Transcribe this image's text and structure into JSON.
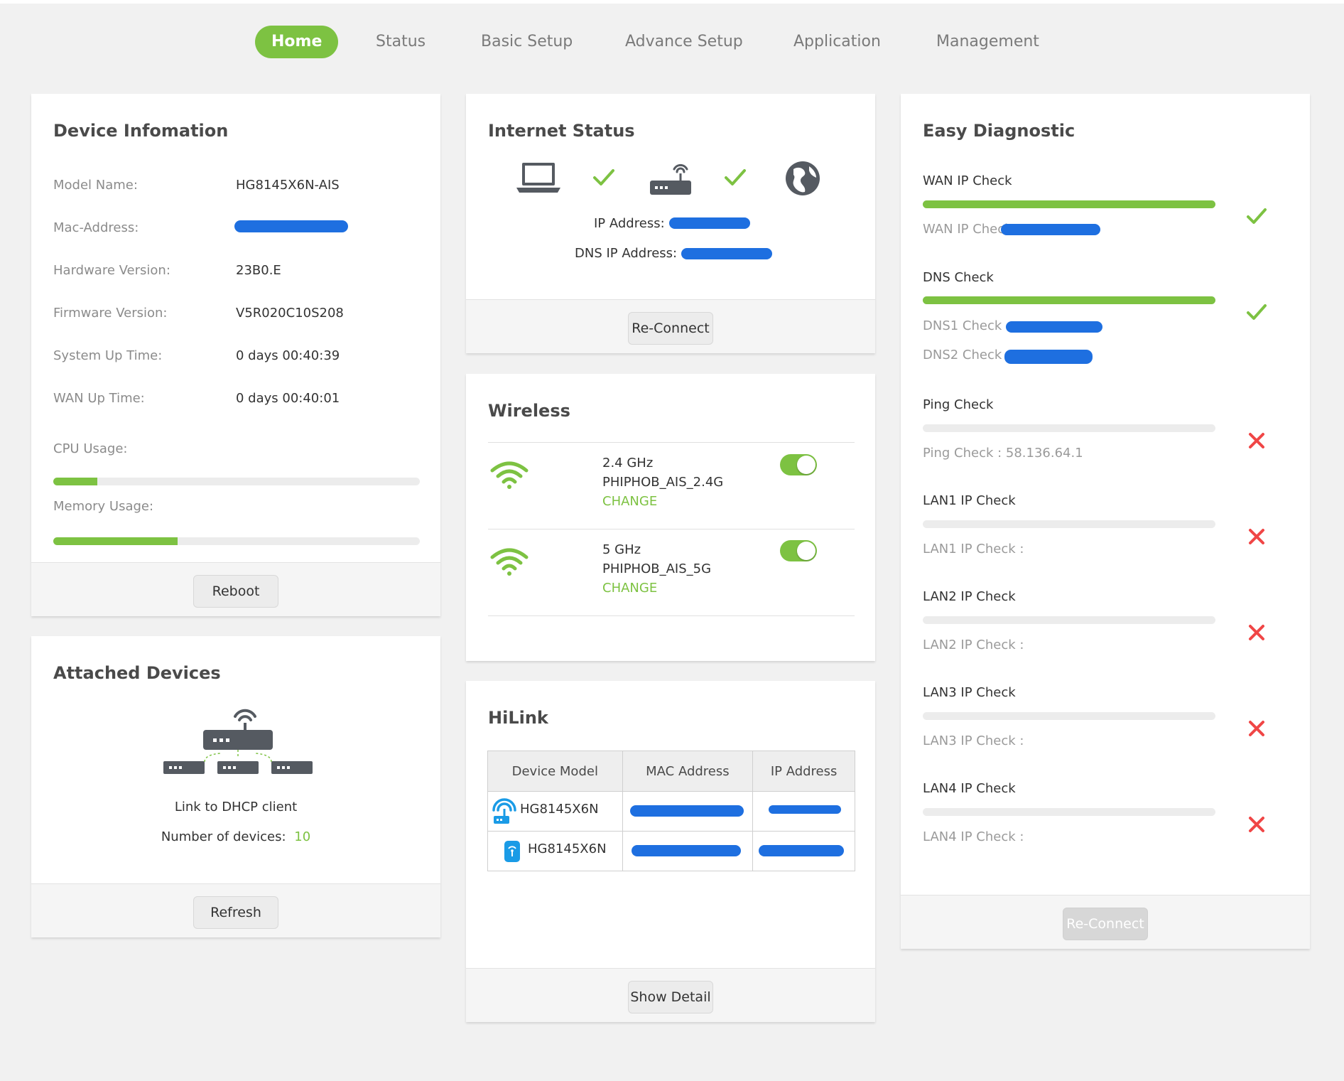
{
  "nav": {
    "items": [
      {
        "label": "Home",
        "active": true
      },
      {
        "label": "Status"
      },
      {
        "label": "Basic Setup"
      },
      {
        "label": "Advance Setup"
      },
      {
        "label": "Application"
      },
      {
        "label": "Management"
      }
    ]
  },
  "device_info": {
    "title": "Device Infomation",
    "rows": [
      {
        "label": "Model Name:",
        "value": "HG8145X6N-AIS"
      },
      {
        "label": "Mac-Address:",
        "value": ""
      },
      {
        "label": "Hardware Version:",
        "value": "23B0.E"
      },
      {
        "label": "Firmware Version:",
        "value": "V5R020C10S208"
      },
      {
        "label": "System Up Time:",
        "value": "0 days 00:40:39"
      },
      {
        "label": "WAN Up Time:",
        "value": "0 days 00:40:01"
      }
    ],
    "cpu_label": "CPU Usage:",
    "cpu_usage": 0.12,
    "memory_label": "Memory Usage:",
    "memory_usage": 0.34,
    "reboot_label": "Reboot"
  },
  "attached_devices": {
    "title": "Attached Devices",
    "link_text": "Link to DHCP client",
    "count_label": "Number of devices:",
    "count": "10",
    "refresh_label": "Refresh"
  },
  "internet_status": {
    "title": "Internet Status",
    "ip_label": "IP Address:",
    "dns_label": "DNS IP Address:",
    "reconnect_label": "Re-Connect"
  },
  "wireless": {
    "title": "Wireless",
    "networks": [
      {
        "band": "2.4 GHz",
        "ssid": "PHIPHOB_AIS_2.4G",
        "change": "CHANGE",
        "enabled": true
      },
      {
        "band": "5 GHz",
        "ssid": "PHIPHOB_AIS_5G",
        "change": "CHANGE",
        "enabled": true
      }
    ]
  },
  "hilink": {
    "title": "HiLink",
    "columns": [
      "Device Model",
      "MAC Address",
      "IP Address"
    ],
    "rows": [
      {
        "model": "HG8145X6N",
        "mac": "",
        "ip": ""
      },
      {
        "model": "HG8145X6N",
        "mac": "",
        "ip": ""
      }
    ],
    "show_detail_label": "Show Detail"
  },
  "diagnostic": {
    "title": "Easy Diagnostic",
    "checks": [
      {
        "name": "WAN IP Check",
        "progress": 1,
        "status": "ok",
        "subs": [
          "WAN IP Check :"
        ]
      },
      {
        "name": "DNS Check",
        "progress": 1,
        "status": "ok",
        "subs": [
          "DNS1 Check :",
          "DNS2 Check :"
        ]
      },
      {
        "name": "Ping Check",
        "progress": 0,
        "status": "fail",
        "subs": [
          "Ping Check : 58.136.64.1"
        ]
      },
      {
        "name": "LAN1 IP Check",
        "progress": 0,
        "status": "fail",
        "subs": [
          "LAN1 IP Check :"
        ]
      },
      {
        "name": "LAN2 IP Check",
        "progress": 0,
        "status": "fail",
        "subs": [
          "LAN2 IP Check :"
        ]
      },
      {
        "name": "LAN3 IP Check",
        "progress": 0,
        "status": "fail",
        "subs": [
          "LAN3 IP Check :"
        ]
      },
      {
        "name": "LAN4 IP Check",
        "progress": 0,
        "status": "fail",
        "subs": [
          "LAN4 IP Check :"
        ]
      }
    ],
    "reconnect_label": "Re-Connect"
  },
  "colors": {
    "accent": "#7dc242",
    "fail": "#f04646",
    "redaction": "#1e6fe0"
  },
  "icons": {
    "laptop": "laptop-icon",
    "router": "router-icon",
    "globe": "globe-icon",
    "wifi": "wifi-icon",
    "check": "check-icon",
    "cross": "cross-icon"
  }
}
